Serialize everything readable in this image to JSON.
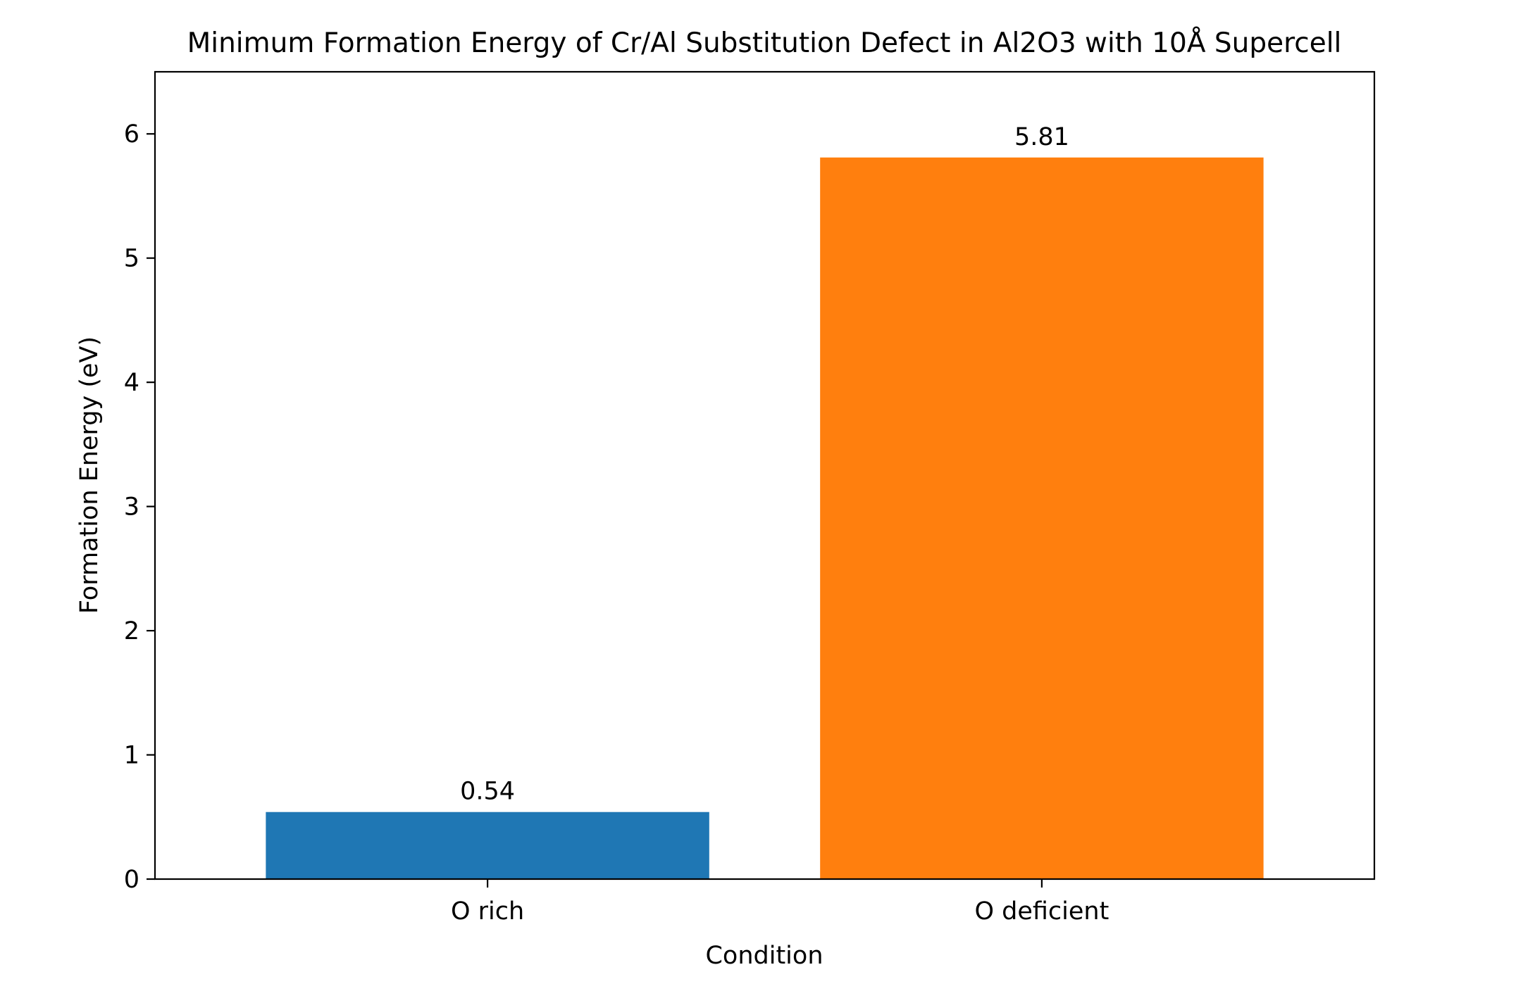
{
  "chart_data": {
    "type": "bar",
    "title": "Minimum Formation Energy of Cr/Al Substitution Defect in Al2O3 with 10Å Supercell",
    "xlabel": "Condition",
    "ylabel": "Formation Energy (eV)",
    "categories": [
      "O rich",
      "O deficient"
    ],
    "values": [
      0.54,
      5.81
    ],
    "data_labels": [
      "0.54",
      "5.81"
    ],
    "colors": [
      "#1f77b4",
      "#ff7f0e"
    ],
    "ylim": [
      0,
      6.5
    ],
    "yticks": [
      0,
      1,
      2,
      3,
      4,
      5,
      6
    ],
    "grid": false,
    "legend": "none"
  }
}
